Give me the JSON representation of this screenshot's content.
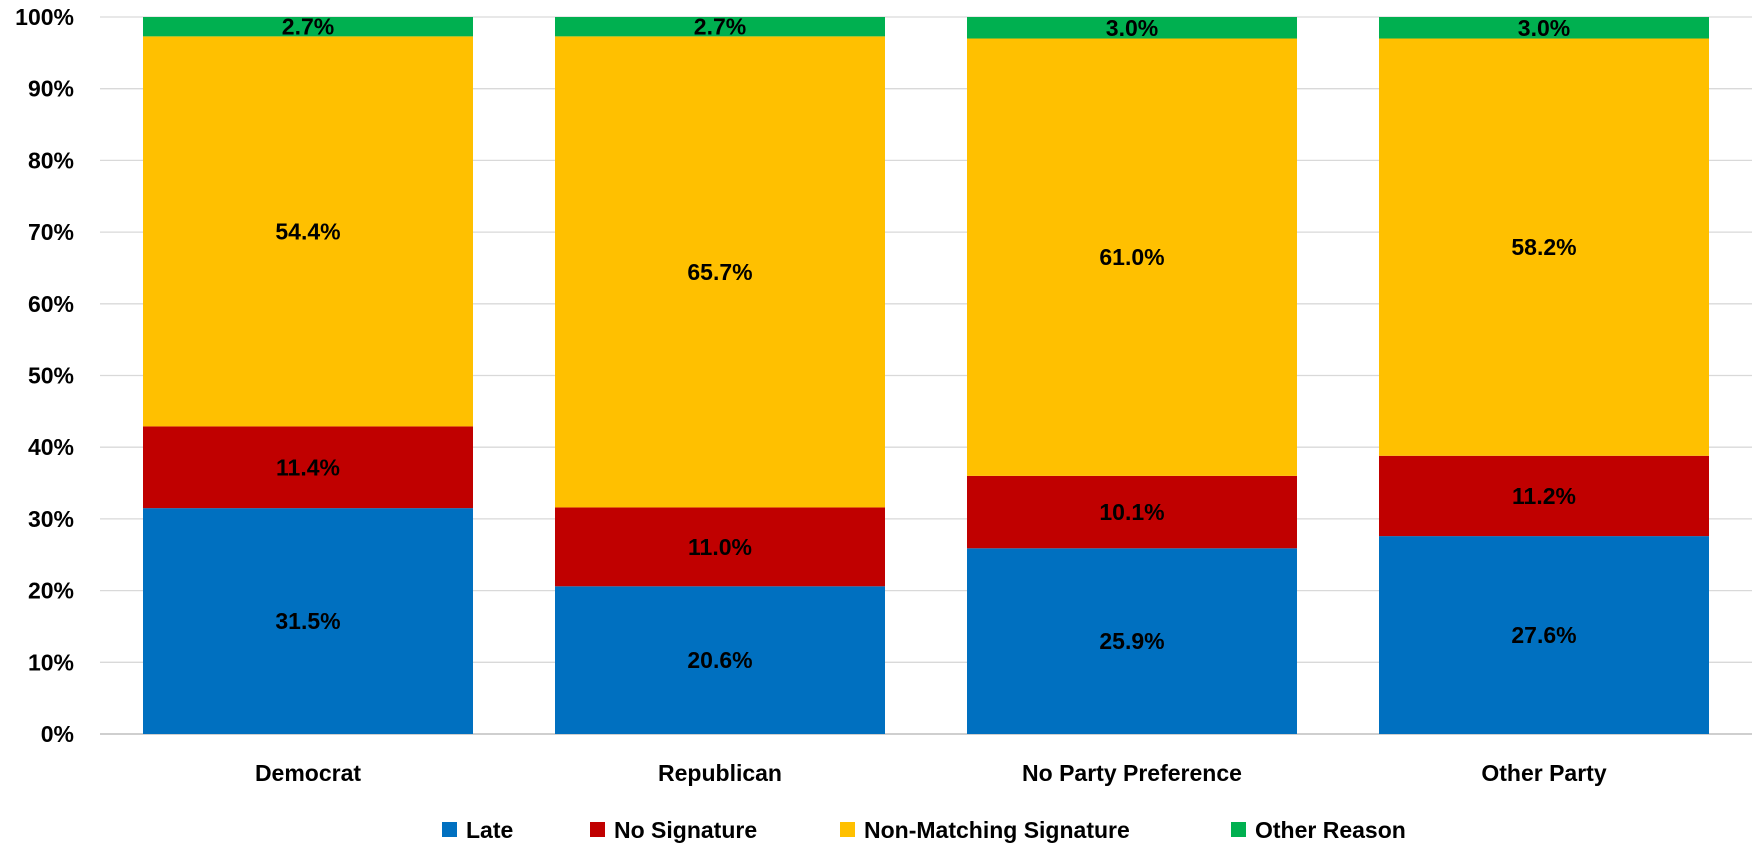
{
  "chart_data": {
    "type": "bar",
    "stacked": true,
    "title": "",
    "xlabel": "",
    "ylabel": "",
    "ylim": [
      0,
      100
    ],
    "yticks": [
      "0%",
      "10%",
      "20%",
      "30%",
      "40%",
      "50%",
      "60%",
      "70%",
      "80%",
      "90%",
      "100%"
    ],
    "grid": true,
    "legend_position": "bottom",
    "categories": [
      "Democrat",
      "Republican",
      "No Party Preference",
      "Other Party"
    ],
    "series": [
      {
        "name": "Late",
        "color": "#0070c0",
        "values": [
          31.5,
          20.6,
          25.9,
          27.6
        ],
        "labels": [
          "31.5%",
          "20.6%",
          "25.9%",
          "27.6%"
        ]
      },
      {
        "name": "No Signature",
        "color": "#c00000",
        "values": [
          11.4,
          11.0,
          10.1,
          11.2
        ],
        "labels": [
          "11.4%",
          "11.0%",
          "10.1%",
          "11.2%"
        ]
      },
      {
        "name": "Non-Matching Signature",
        "color": "#ffc000",
        "values": [
          54.4,
          65.7,
          61.0,
          58.2
        ],
        "labels": [
          "54.4%",
          "65.7%",
          "61.0%",
          "58.2%"
        ]
      },
      {
        "name": "Other Reason",
        "color": "#00b050",
        "values": [
          2.7,
          2.7,
          3.0,
          3.0
        ],
        "labels": [
          "2.7%",
          "2.7%",
          "3.0%",
          "3.0%"
        ]
      }
    ]
  }
}
